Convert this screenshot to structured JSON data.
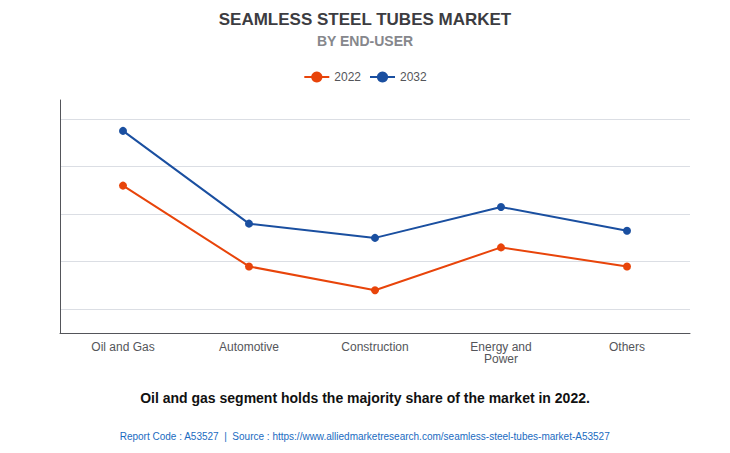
{
  "chart_data": {
    "type": "line",
    "title": "SEAMLESS STEEL TUBES MARKET",
    "subtitle": "BY END-USER",
    "annotations": [
      "Oil and gas segment holds the majority share of the market in 2022.",
      "Report Code : A53527  |  Source : https://www.alliedmarketresearch.com/seamless-steel-tubes-market-A53527"
    ],
    "categories": [
      "Oil and Gas",
      "Automotive",
      "Construction",
      "Energy and\nPower",
      "Others"
    ],
    "series": [
      {
        "name": "2022",
        "color": "#e8440a",
        "values": [
          0.72,
          0.38,
          0.28,
          0.46,
          0.38
        ]
      },
      {
        "name": "2032",
        "color": "#1a4fa0",
        "values": [
          0.95,
          0.56,
          0.5,
          0.63,
          0.53
        ]
      }
    ],
    "ylim": [
      0.1,
      1.08
    ],
    "yticks": [
      0.2,
      0.4,
      0.6,
      0.8,
      1.0
    ],
    "grid": true,
    "legend": "top",
    "tick_labels": "x",
    "marker": "circle",
    "line_style": "solid"
  }
}
